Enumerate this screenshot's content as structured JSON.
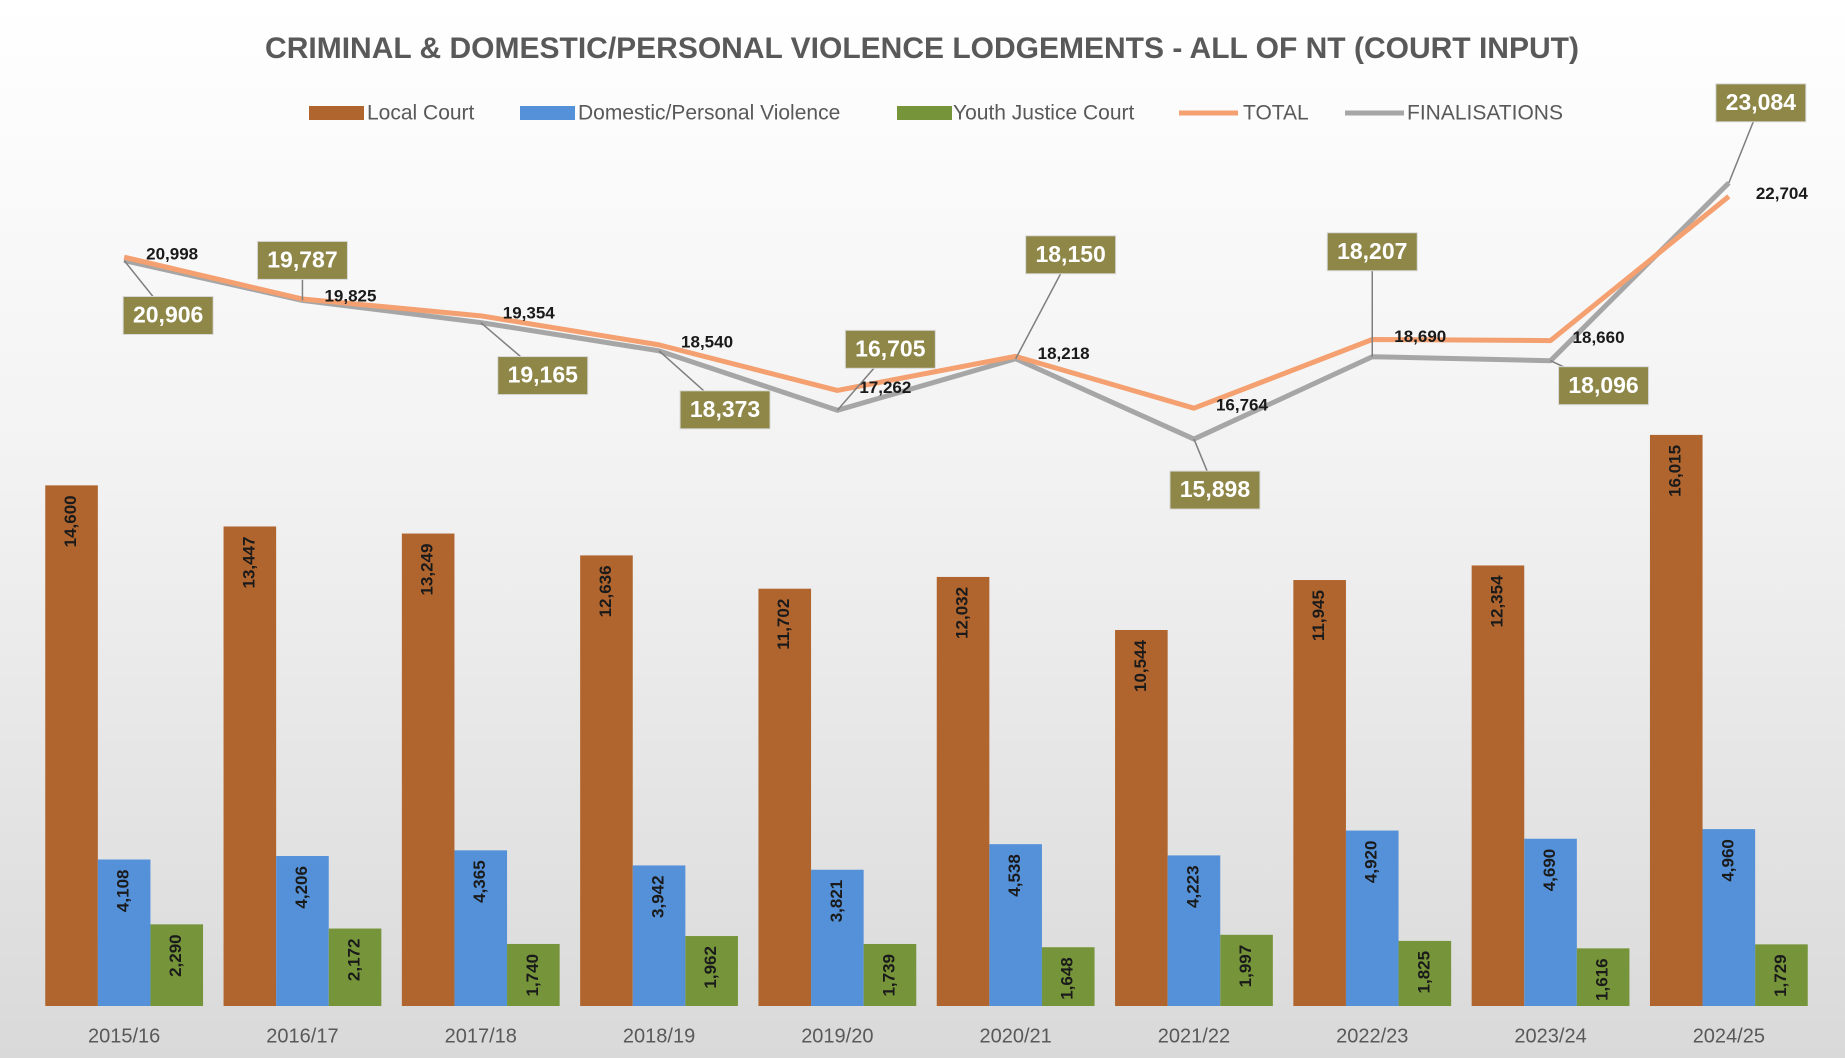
{
  "chart_data": {
    "type": "bar",
    "title": "CRIMINAL & DOMESTIC/PERSONAL VIOLENCE LODGEMENTS - ALL OF NT (COURT INPUT)",
    "categories": [
      "2015/16",
      "2016/17",
      "2017/18",
      "2018/19",
      "2019/20",
      "2020/21",
      "2021/22",
      "2022/23",
      "2023/24",
      "2024/25"
    ],
    "ylim": [
      0,
      25000
    ],
    "legend": "top",
    "series": [
      {
        "name": "Local Court",
        "type": "bar",
        "color": "#b0652f",
        "values": [
          14600,
          13447,
          13249,
          12636,
          11702,
          12032,
          10544,
          11945,
          12354,
          16015
        ],
        "value_labels": [
          "14,600",
          "13,447",
          "13,249",
          "12,636",
          "11,702",
          "12,032",
          "10,544",
          "11,945",
          "12,354",
          "16,015"
        ]
      },
      {
        "name": "Domestic/Personal Violence",
        "type": "bar",
        "color": "#5591d8",
        "values": [
          4108,
          4206,
          4365,
          3942,
          3821,
          4538,
          4223,
          4920,
          4690,
          4960
        ],
        "value_labels": [
          "4,108",
          "4,206",
          "4,365",
          "3,942",
          "3,821",
          "4,538",
          "4,223",
          "4,920",
          "4,690",
          "4,960"
        ]
      },
      {
        "name": "Youth Justice Court",
        "type": "bar",
        "color": "#76953a",
        "values": [
          2290,
          2172,
          1740,
          1962,
          1739,
          1648,
          1997,
          1825,
          1616,
          1729
        ],
        "value_labels": [
          "2,290",
          "2,172",
          "1,740",
          "1,962",
          "1,739",
          "1,648",
          "1,997",
          "1,825",
          "1,616",
          "1,729"
        ]
      },
      {
        "name": "TOTAL",
        "type": "line",
        "color": "#f4a070",
        "values": [
          20998,
          19825,
          19354,
          18540,
          17262,
          18218,
          16764,
          18690,
          18660,
          22704
        ],
        "value_labels": [
          "20,998",
          "19,825",
          "19,354",
          "18,540",
          "17,262",
          "18,218",
          "16,764",
          "18,690",
          "18,660",
          "22,704"
        ]
      },
      {
        "name": "FINALISATIONS",
        "type": "line",
        "color": "#a6a6a6",
        "values": [
          20906,
          19787,
          19165,
          18373,
          16705,
          18150,
          15898,
          18207,
          18096,
          23084
        ],
        "value_labels": [
          "20,906",
          "19,787",
          "19,165",
          "18,373",
          "16,705",
          "18,150",
          "15,898",
          "18,207",
          "18,096",
          "23,084"
        ]
      }
    ]
  }
}
